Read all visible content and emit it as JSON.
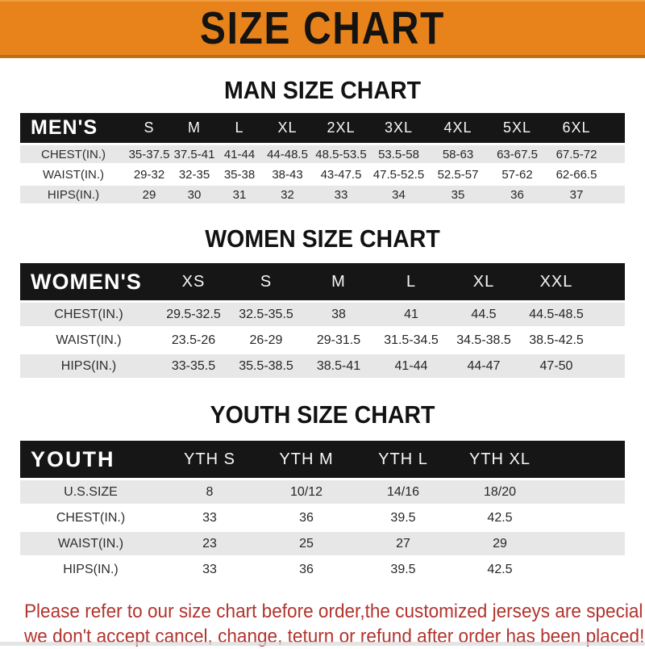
{
  "banner": {
    "title": "SIZE CHART"
  },
  "colors": {
    "banner_bg": "#E8831C",
    "header_bar": "#161616",
    "row_stripe": "#E7E7E7",
    "footer_red": "#B2342E"
  },
  "men": {
    "heading": "MAN SIZE CHART",
    "label": "MEN'S",
    "columns": [
      "S",
      "M",
      "L",
      "XL",
      "2XL",
      "3XL",
      "4XL",
      "5XL",
      "6XL"
    ],
    "rows": [
      {
        "label": "CHEST(IN.)",
        "values": [
          "35-37.5",
          "37.5-41",
          "41-44",
          "44-48.5",
          "48.5-53.5",
          "53.5-58",
          "58-63",
          "63-67.5",
          "67.5-72"
        ]
      },
      {
        "label": "WAIST(IN.)",
        "values": [
          "29-32",
          "32-35",
          "35-38",
          "38-43",
          "43-47.5",
          "47.5-52.5",
          "52.5-57",
          "57-62",
          "62-66.5"
        ]
      },
      {
        "label": "HIPS(IN.)",
        "values": [
          "29",
          "30",
          "31",
          "32",
          "33",
          "34",
          "35",
          "36",
          "37"
        ]
      }
    ]
  },
  "women": {
    "heading": "WOMEN SIZE CHART",
    "label": "WOMEN'S",
    "columns": [
      "XS",
      "S",
      "M",
      "L",
      "XL",
      "XXL"
    ],
    "rows": [
      {
        "label": "CHEST(IN.)",
        "values": [
          "29.5-32.5",
          "32.5-35.5",
          "38",
          "41",
          "44.5",
          "44.5-48.5"
        ]
      },
      {
        "label": "WAIST(IN.)",
        "values": [
          "23.5-26",
          "26-29",
          "29-31.5",
          "31.5-34.5",
          "34.5-38.5",
          "38.5-42.5"
        ]
      },
      {
        "label": "HIPS(IN.)",
        "values": [
          "33-35.5",
          "35.5-38.5",
          "38.5-41",
          "41-44",
          "44-47",
          "47-50"
        ]
      }
    ]
  },
  "youth": {
    "heading": "YOUTH SIZE CHART",
    "label": "YOUTH",
    "columns": [
      "YTH S",
      "YTH M",
      "YTH L",
      "YTH XL"
    ],
    "rows": [
      {
        "label": "U.S.SIZE",
        "values": [
          "8",
          "10/12",
          "14/16",
          "18/20"
        ]
      },
      {
        "label": "CHEST(IN.)",
        "values": [
          "33",
          "36",
          "39.5",
          "42.5"
        ]
      },
      {
        "label": "WAIST(IN.)",
        "values": [
          "23",
          "25",
          "27",
          "29"
        ]
      },
      {
        "label": "HIPS(IN.)",
        "values": [
          "33",
          "36",
          "39.5",
          "42.5"
        ]
      }
    ]
  },
  "footer": {
    "line1": "Please refer to our size chart before order,the customized jerseys are special products,",
    "line2": "we don't accept cancel, change, teturn or refund after order has been placed!"
  }
}
